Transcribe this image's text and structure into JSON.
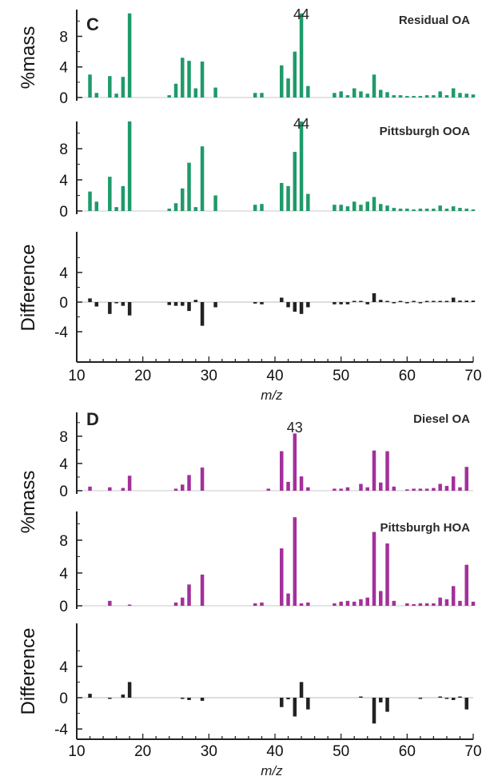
{
  "colors": {
    "green": "#1f9a6a",
    "purple": "#a3309b",
    "diff": "#222222",
    "axis": "#222222"
  },
  "chart_data": [
    {
      "type": "bar",
      "panel_letter": "C",
      "xlabel": "m/z",
      "xlim": [
        10,
        70
      ],
      "x_ticks": [
        "10",
        "20",
        "30",
        "40",
        "50",
        "60",
        "70"
      ],
      "subplots": [
        {
          "title": "Residual OA",
          "ylabel": "%mass",
          "ylim": [
            -0.5,
            11.5
          ],
          "y_ticks": [
            "0",
            "4",
            "8"
          ],
          "color": "green",
          "peak_label": "44",
          "peak_x": 44,
          "x": [
            12,
            13,
            15,
            16,
            17,
            18,
            24,
            25,
            26,
            27,
            28,
            29,
            31,
            37,
            38,
            41,
            42,
            43,
            44,
            45,
            49,
            50,
            51,
            52,
            53,
            54,
            55,
            56,
            57,
            58,
            59,
            60,
            61,
            62,
            63,
            64,
            65,
            66,
            67,
            68,
            69,
            70
          ],
          "values": [
            3.0,
            0.6,
            2.8,
            0.5,
            2.7,
            11.0,
            0.3,
            1.8,
            5.2,
            4.8,
            1.2,
            4.7,
            1.3,
            0.6,
            0.6,
            4.2,
            2.5,
            6.0,
            11.0,
            1.5,
            0.6,
            0.8,
            0.3,
            1.2,
            0.8,
            0.5,
            3.0,
            1.0,
            0.7,
            0.3,
            0.3,
            0.2,
            0.2,
            0.2,
            0.3,
            0.3,
            0.8,
            0.3,
            1.2,
            0.6,
            0.5,
            0.4
          ]
        },
        {
          "title": "Pittsburgh OOA",
          "ylabel": "",
          "ylim": [
            -0.5,
            11.5
          ],
          "y_ticks": [
            "0",
            "4",
            "8"
          ],
          "color": "green",
          "peak_label": "44",
          "peak_x": 44,
          "x": [
            12,
            13,
            15,
            16,
            17,
            18,
            24,
            25,
            26,
            27,
            28,
            29,
            31,
            37,
            38,
            41,
            42,
            43,
            44,
            45,
            49,
            50,
            51,
            52,
            53,
            54,
            55,
            56,
            57,
            58,
            59,
            60,
            61,
            62,
            63,
            64,
            65,
            66,
            67,
            68,
            69,
            70
          ],
          "values": [
            2.5,
            1.2,
            4.4,
            0.5,
            3.2,
            11.5,
            0.3,
            1.0,
            2.9,
            6.2,
            0.5,
            8.3,
            2.0,
            0.8,
            0.9,
            3.6,
            3.2,
            7.6,
            11.5,
            2.2,
            0.8,
            0.8,
            0.6,
            1.2,
            0.8,
            1.2,
            1.8,
            0.9,
            0.7,
            0.4,
            0.3,
            0.3,
            0.2,
            0.3,
            0.3,
            0.3,
            0.7,
            0.3,
            0.6,
            0.4,
            0.3,
            0.2
          ]
        },
        {
          "title": "",
          "ylabel": "Difference",
          "ylim": [
            -4.5,
            9.5
          ],
          "y_ticks": [
            "-4",
            "0",
            "4"
          ],
          "color": "diff",
          "x": [
            12,
            13,
            15,
            16,
            17,
            18,
            24,
            25,
            26,
            27,
            28,
            29,
            31,
            37,
            38,
            41,
            42,
            43,
            44,
            45,
            49,
            50,
            51,
            52,
            53,
            54,
            55,
            56,
            57,
            58,
            59,
            60,
            61,
            62,
            63,
            64,
            65,
            66,
            67,
            68,
            69,
            70
          ],
          "values": [
            0.5,
            -0.6,
            -1.6,
            -0.1,
            -0.5,
            -1.8,
            -0.4,
            -0.5,
            -0.5,
            -1.2,
            0.3,
            -3.2,
            -0.7,
            -0.2,
            -0.3,
            0.6,
            -0.7,
            -1.3,
            -1.6,
            -0.7,
            -0.3,
            -0.3,
            -0.3,
            0.0,
            0.0,
            -0.3,
            1.2,
            0.3,
            0.1,
            -0.1,
            0.0,
            -0.1,
            0.0,
            -0.1,
            0.0,
            0.0,
            0.1,
            0.0,
            0.6,
            0.2,
            0.2,
            0.2
          ]
        }
      ]
    },
    {
      "type": "bar",
      "panel_letter": "D",
      "xlabel": "m/z",
      "xlim": [
        10,
        70
      ],
      "x_ticks": [
        "10",
        "20",
        "30",
        "40",
        "50",
        "60",
        "70"
      ],
      "subplots": [
        {
          "title": "Diesel OA",
          "ylabel": "%mass",
          "ylim": [
            -0.5,
            11.5
          ],
          "y_ticks": [
            "0",
            "4",
            "8"
          ],
          "color": "purple",
          "peak_label": "43",
          "peak_x": 43,
          "x": [
            12,
            15,
            17,
            18,
            25,
            26,
            27,
            29,
            39,
            41,
            42,
            43,
            44,
            45,
            49,
            50,
            51,
            53,
            54,
            55,
            56,
            57,
            58,
            60,
            61,
            62,
            63,
            64,
            65,
            66,
            67,
            68,
            69
          ],
          "values": [
            0.6,
            0.5,
            0.4,
            2.2,
            0.3,
            0.9,
            2.3,
            3.4,
            0.3,
            5.8,
            1.3,
            8.4,
            2.1,
            0.5,
            0.3,
            0.3,
            0.5,
            1.0,
            0.5,
            5.9,
            1.2,
            5.8,
            0.6,
            0.2,
            0.3,
            0.3,
            0.3,
            0.4,
            1.0,
            0.7,
            2.1,
            0.5,
            3.5
          ]
        },
        {
          "title": "Pittsburgh HOA",
          "ylabel": "",
          "ylim": [
            -0.5,
            11.5
          ],
          "y_ticks": [
            "0",
            "4",
            "8"
          ],
          "color": "purple",
          "x": [
            15,
            18,
            25,
            26,
            27,
            29,
            37,
            38,
            41,
            42,
            43,
            44,
            45,
            49,
            50,
            51,
            52,
            53,
            54,
            55,
            56,
            57,
            58,
            60,
            61,
            62,
            63,
            64,
            65,
            66,
            67,
            68,
            69,
            70
          ],
          "values": [
            0.6,
            0.1,
            0.4,
            1.0,
            2.6,
            3.8,
            0.3,
            0.4,
            7.0,
            1.5,
            10.8,
            0.3,
            0.4,
            0.3,
            0.5,
            0.6,
            0.5,
            0.8,
            1.0,
            9.0,
            1.8,
            7.6,
            0.6,
            0.3,
            0.2,
            0.3,
            0.3,
            0.3,
            1.0,
            0.8,
            2.4,
            0.6,
            5.0,
            0.5
          ]
        },
        {
          "title": "",
          "ylabel": "Difference",
          "ylim": [
            -4.5,
            9.5
          ],
          "y_ticks": [
            "-4",
            "0",
            "4"
          ],
          "color": "diff",
          "x": [
            12,
            15,
            17,
            18,
            26,
            27,
            29,
            41,
            42,
            43,
            44,
            45,
            53,
            55,
            56,
            57,
            62,
            65,
            66,
            67,
            68,
            69
          ],
          "values": [
            0.5,
            -0.1,
            0.4,
            2.0,
            -0.1,
            -0.3,
            -0.4,
            -1.2,
            -0.2,
            -2.4,
            2.0,
            -1.5,
            0.1,
            -3.3,
            -0.6,
            -1.8,
            -0.1,
            0.0,
            -0.1,
            -0.3,
            0.1,
            -1.5
          ]
        }
      ]
    }
  ]
}
